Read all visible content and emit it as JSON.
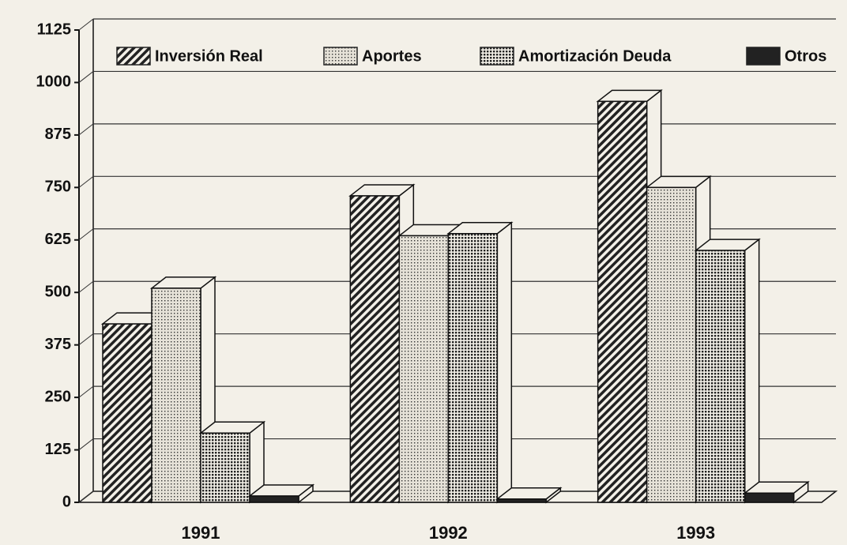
{
  "chart_data": {
    "type": "bar3d",
    "categories": [
      "1991",
      "1992",
      "1993"
    ],
    "series": [
      {
        "name": "Inversión Real",
        "color": "#222222",
        "pattern": "hatch",
        "values": [
          425,
          730,
          955
        ]
      },
      {
        "name": "Aportes",
        "color": "#222222",
        "pattern": "dots",
        "values": [
          510,
          635,
          750
        ]
      },
      {
        "name": "Amortización Deuda",
        "color": "#222222",
        "pattern": "grid",
        "values": [
          165,
          640,
          600
        ]
      },
      {
        "name": "Otros",
        "color": "#222222",
        "pattern": "solid",
        "values": [
          15,
          8,
          22
        ]
      }
    ],
    "ylim": [
      0,
      1125
    ],
    "yticks": [
      0,
      125,
      250,
      375,
      500,
      625,
      750,
      875,
      1000,
      1125
    ],
    "grid": true,
    "legend": "top"
  }
}
